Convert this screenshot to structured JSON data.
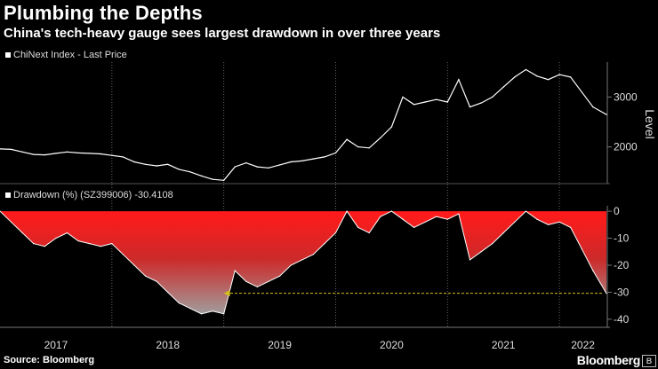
{
  "header": {
    "title": "Plumbing the Depths",
    "subtitle": "China's tech-heavy gauge sees largest drawdown in over three years"
  },
  "footer": {
    "source": "Source: Bloomberg",
    "brand": "Bloomberg",
    "brand_icon": "B"
  },
  "colors": {
    "background": "#000000",
    "price_line": "#ffffff",
    "drawdown_fill_top": "#ff1a1a",
    "drawdown_fill_bottom": "#9a9a9a",
    "arrow": "#d4c21a"
  },
  "chart_data": [
    {
      "type": "line",
      "legend": "ChiNext Index - Last Price",
      "ylabel": "Level",
      "yticks": [
        2000,
        3000
      ],
      "ylim": [
        1300,
        3700
      ],
      "xlim": [
        2017.0,
        2022.42
      ],
      "x": [
        2017.0,
        2017.1,
        2017.2,
        2017.3,
        2017.4,
        2017.5,
        2017.6,
        2017.7,
        2017.8,
        2017.9,
        2018.0,
        2018.1,
        2018.2,
        2018.3,
        2018.4,
        2018.5,
        2018.6,
        2018.7,
        2018.8,
        2018.9,
        2019.0,
        2019.1,
        2019.2,
        2019.3,
        2019.4,
        2019.5,
        2019.6,
        2019.7,
        2019.8,
        2019.9,
        2020.0,
        2020.1,
        2020.2,
        2020.3,
        2020.4,
        2020.5,
        2020.6,
        2020.7,
        2020.8,
        2020.9,
        2021.0,
        2021.1,
        2021.2,
        2021.3,
        2021.4,
        2021.5,
        2021.6,
        2021.7,
        2021.8,
        2021.9,
        2022.0,
        2022.1,
        2022.2,
        2022.3,
        2022.42
      ],
      "values": [
        1960,
        1950,
        1900,
        1850,
        1840,
        1870,
        1900,
        1880,
        1870,
        1860,
        1830,
        1800,
        1700,
        1650,
        1620,
        1650,
        1550,
        1500,
        1420,
        1350,
        1330,
        1600,
        1680,
        1600,
        1580,
        1640,
        1700,
        1720,
        1760,
        1800,
        1880,
        2150,
        2000,
        1980,
        2180,
        2400,
        3000,
        2850,
        2900,
        2950,
        2900,
        3350,
        2800,
        2880,
        3000,
        3200,
        3400,
        3550,
        3420,
        3350,
        3450,
        3400,
        3100,
        2800,
        2650
      ]
    },
    {
      "type": "area",
      "legend": "Drawdown (%) (SZ399006) -30.4108",
      "yticks": [
        0,
        -10,
        -20,
        -30,
        -40
      ],
      "ylim": [
        -42,
        2
      ],
      "xticks": [
        "2017",
        "2018",
        "2019",
        "2020",
        "2021",
        "2022"
      ],
      "xlim": [
        2017.0,
        2022.42
      ],
      "x": [
        2017.0,
        2017.1,
        2017.2,
        2017.3,
        2017.4,
        2017.5,
        2017.6,
        2017.7,
        2017.8,
        2017.9,
        2018.0,
        2018.1,
        2018.2,
        2018.3,
        2018.4,
        2018.5,
        2018.6,
        2018.7,
        2018.8,
        2018.9,
        2019.0,
        2019.1,
        2019.2,
        2019.3,
        2019.4,
        2019.5,
        2019.6,
        2019.7,
        2019.8,
        2019.9,
        2020.0,
        2020.1,
        2020.2,
        2020.3,
        2020.4,
        2020.5,
        2020.6,
        2020.7,
        2020.8,
        2020.9,
        2021.0,
        2021.1,
        2021.2,
        2021.3,
        2021.4,
        2021.5,
        2021.6,
        2021.7,
        2021.8,
        2021.9,
        2022.0,
        2022.1,
        2022.2,
        2022.3,
        2022.42
      ],
      "values": [
        0,
        -4,
        -8,
        -12,
        -13,
        -10,
        -8,
        -11,
        -12,
        -13,
        -12,
        -16,
        -20,
        -24,
        -26,
        -30,
        -34,
        -36,
        -38,
        -37,
        -38,
        -22,
        -26,
        -28,
        -26,
        -24,
        -20,
        -18,
        -16,
        -12,
        -8,
        0,
        -6,
        -8,
        -2,
        0,
        -3,
        -6,
        -4,
        -2,
        -3,
        -1,
        -18,
        -15,
        -12,
        -8,
        -4,
        0,
        -3,
        -5,
        -4,
        -6,
        -14,
        -22,
        -30.4
      ],
      "annotation": {
        "type": "arrow",
        "level": -30.4,
        "from_x": 2022.38,
        "to_x": 2019.0
      }
    }
  ]
}
